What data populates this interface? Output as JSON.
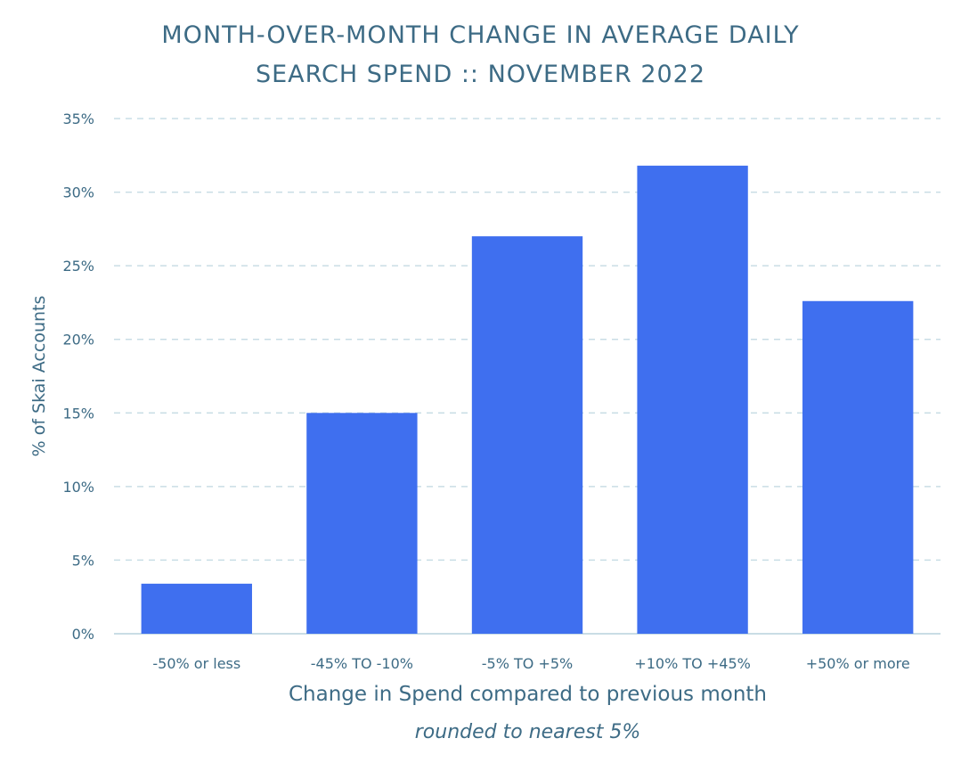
{
  "chart_data": {
    "type": "bar",
    "title_line1": "MONTH-OVER-MONTH CHANGE IN AVERAGE DAILY",
    "title_line2": "SEARCH SPEND :: NOVEMBER 2022",
    "xlabel": "Change in Spend compared to previous month",
    "xlabel_sub": "rounded to nearest 5%",
    "ylabel": "% of Skai Accounts",
    "categories": [
      "-50% or less",
      "-45% TO -10%",
      "-5% TO +5%",
      "+10% TO +45%",
      "+50% or more"
    ],
    "values": [
      3.4,
      15.0,
      27.0,
      31.8,
      22.6
    ],
    "ylim": [
      0,
      35
    ],
    "yticks": [
      0,
      5,
      10,
      15,
      20,
      25,
      30,
      35
    ],
    "ytick_labels": [
      "0%",
      "5%",
      "10%",
      "15%",
      "20%",
      "25%",
      "30%",
      "35%"
    ],
    "grid": true,
    "colors": {
      "bar": "#3f6fef",
      "text": "#3d6b85",
      "grid": "#c9dde5",
      "axis": "#c9dde5"
    }
  }
}
